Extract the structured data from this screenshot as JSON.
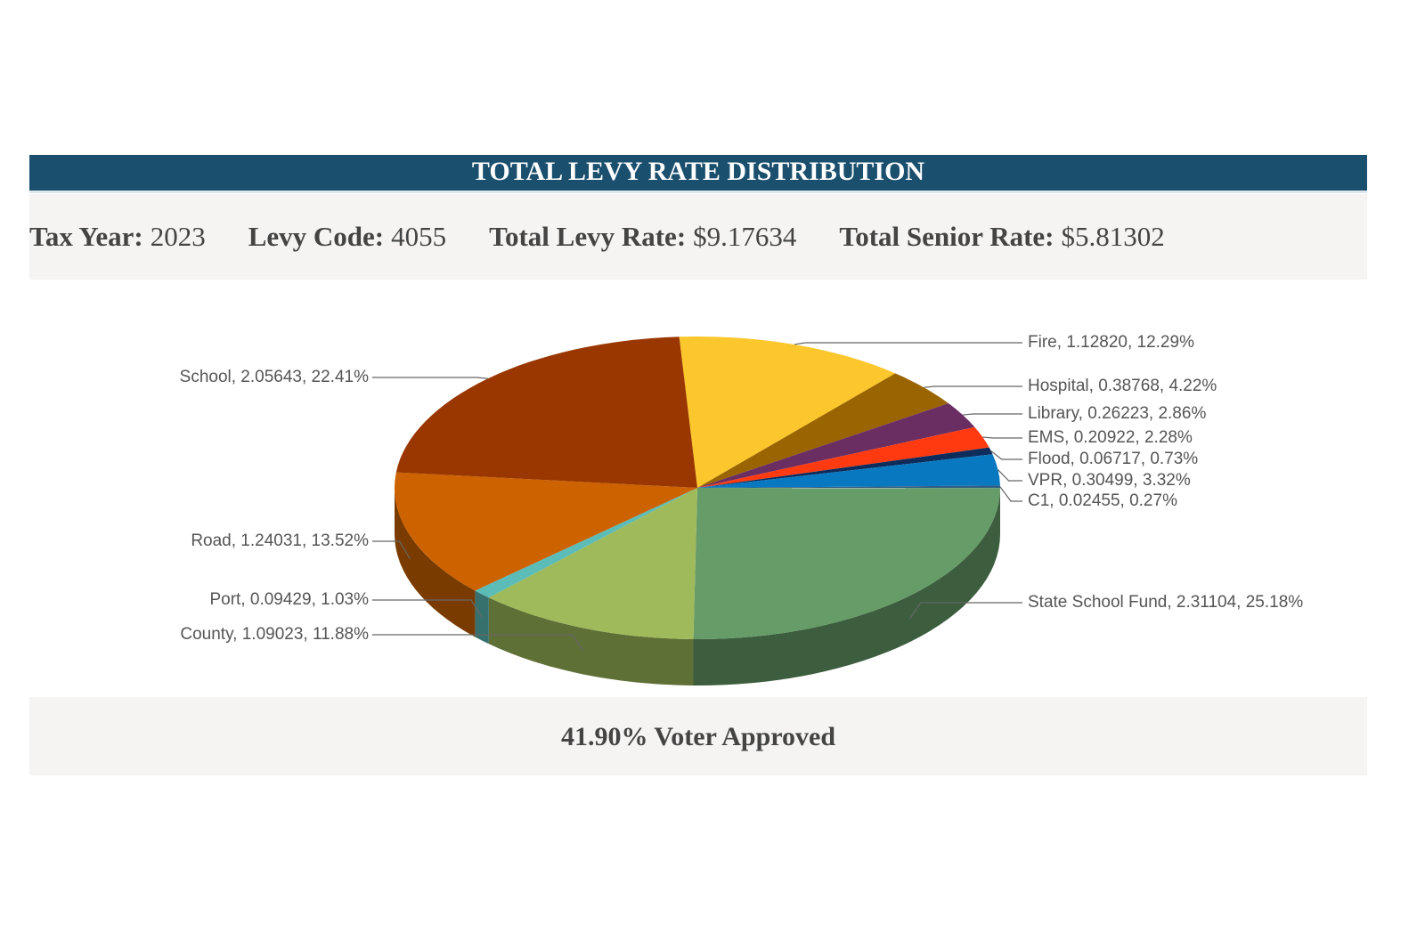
{
  "header": {
    "title": "TOTAL LEVY RATE DISTRIBUTION"
  },
  "info": [
    {
      "label": "Tax Year:",
      "value": "2023"
    },
    {
      "label": "Levy Code:",
      "value": "4055"
    },
    {
      "label": "Total Levy Rate:",
      "value": "$9.17634"
    },
    {
      "label": "Total Senior Rate:",
      "value": "$5.81302"
    }
  ],
  "chart_data": {
    "type": "pie3d",
    "values": [
      1.1282,
      0.38768,
      0.26223,
      0.20922,
      0.06717,
      0.30499,
      0.02455,
      2.31104,
      1.09023,
      0.09429,
      1.24031,
      2.05643
    ],
    "value_labels": [
      "Fire, 1.12820, 12.29%",
      "Hospital, 0.38768, 4.22%",
      "Library, 0.26223, 2.86%",
      "EMS, 0.20922, 2.28%",
      "Flood, 0.06717, 0.73%",
      "VPR, 0.30499, 3.32%",
      "C1, 0.02455, 0.27%",
      "State School Fund, 2.31104, 25.18%",
      "County, 1.09023, 11.88%",
      "Port, 0.09429, 1.03%",
      "Road, 1.24031, 13.52%",
      "School, 2.05643, 22.41%"
    ],
    "colors": [
      "#fcc72c",
      "#9a6400",
      "#6a2e62",
      "#ff3a10",
      "#0d2c5c",
      "#0878c0",
      "#2f5f86",
      "#669c68",
      "#9fba5a",
      "#5bbcb8",
      "#cc6200",
      "#9a3700"
    ]
  },
  "footer": {
    "text": "41.90% Voter Approved"
  }
}
